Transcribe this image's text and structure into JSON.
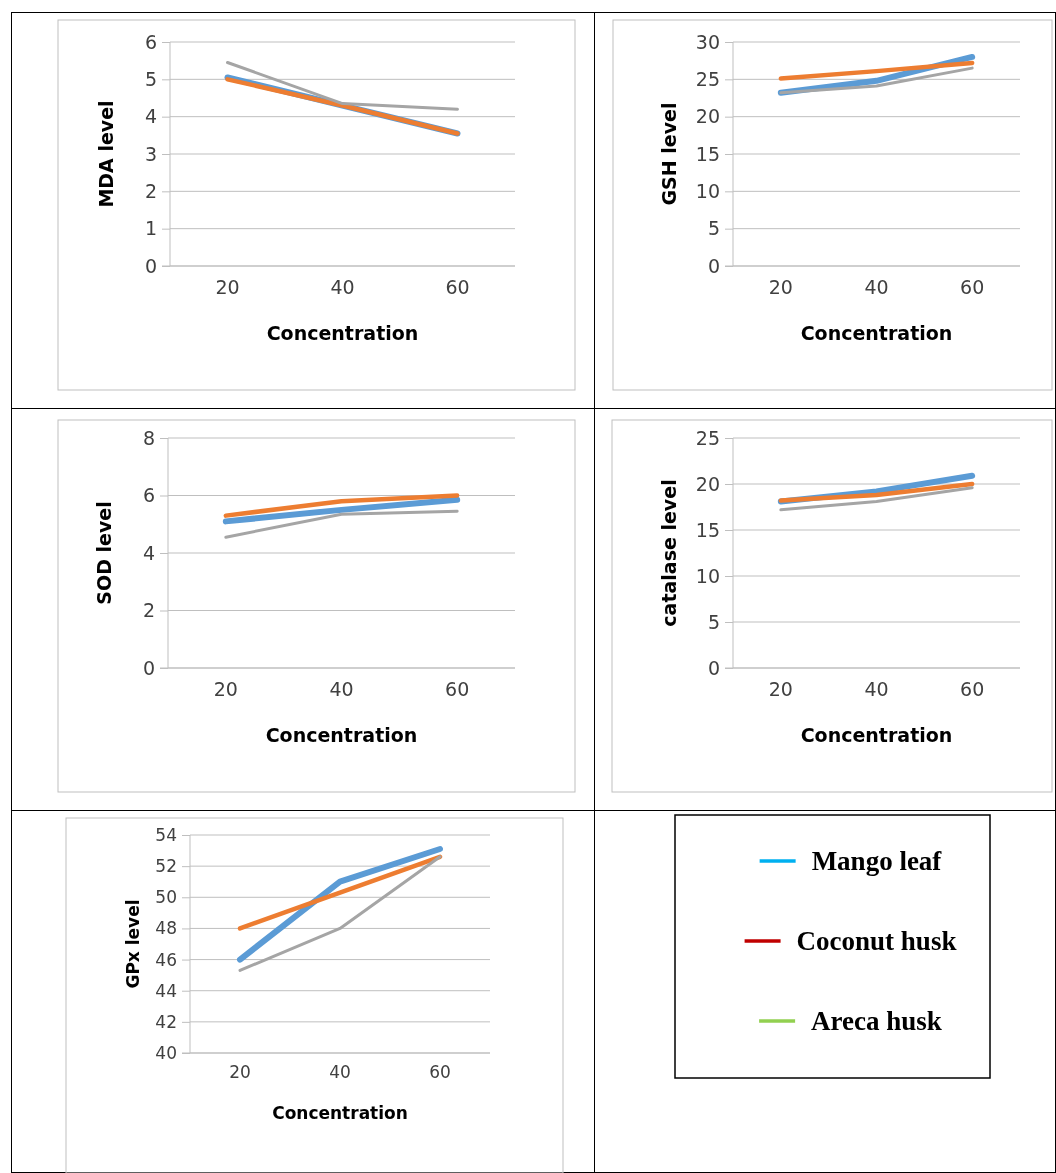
{
  "chart_data": [
    {
      "type": "line",
      "xlabel": "Concentration",
      "ylabel": "MDA level",
      "categories": [
        "20",
        "40",
        "60"
      ],
      "ylim": [
        0,
        6
      ],
      "yticks": [
        0,
        1,
        2,
        3,
        4,
        5,
        6
      ],
      "grid": "y",
      "legend": false,
      "series": [
        {
          "color": "#5b9bd5",
          "values": [
            5.05,
            4.3,
            3.55
          ]
        },
        {
          "color": "#ed7d31",
          "values": [
            5.0,
            4.3,
            3.55
          ]
        },
        {
          "color": "#a5a5a5",
          "values": [
            5.45,
            4.35,
            4.2
          ]
        }
      ]
    },
    {
      "type": "line",
      "xlabel": "Concentration",
      "ylabel": "GSH level",
      "categories": [
        "20",
        "40",
        "60"
      ],
      "ylim": [
        0,
        30
      ],
      "yticks": [
        0,
        5,
        10,
        15,
        20,
        25,
        30
      ],
      "grid": "y",
      "legend": false,
      "series": [
        {
          "color": "#5b9bd5",
          "values": [
            23.2,
            24.8,
            28.0
          ]
        },
        {
          "color": "#ed7d31",
          "values": [
            25.1,
            26.1,
            27.2
          ]
        },
        {
          "color": "#a5a5a5",
          "values": [
            23.2,
            24.1,
            26.5
          ]
        }
      ]
    },
    {
      "type": "line",
      "xlabel": "Concentration",
      "ylabel": "SOD level",
      "categories": [
        "20",
        "40",
        "60"
      ],
      "ylim": [
        0,
        8
      ],
      "yticks": [
        0,
        2,
        4,
        6,
        8
      ],
      "grid": "y",
      "legend": false,
      "series": [
        {
          "color": "#5b9bd5",
          "values": [
            5.1,
            5.5,
            5.85
          ]
        },
        {
          "color": "#ed7d31",
          "values": [
            5.3,
            5.8,
            6.0
          ]
        },
        {
          "color": "#a5a5a5",
          "values": [
            4.55,
            5.35,
            5.45
          ]
        }
      ]
    },
    {
      "type": "line",
      "xlabel": "Concentration",
      "ylabel": "catalase level",
      "categories": [
        "20",
        "40",
        "60"
      ],
      "ylim": [
        0,
        25
      ],
      "yticks": [
        0,
        5,
        10,
        15,
        20,
        25
      ],
      "grid": "y",
      "legend": false,
      "series": [
        {
          "color": "#5b9bd5",
          "values": [
            18.1,
            19.2,
            20.9
          ]
        },
        {
          "color": "#ed7d31",
          "values": [
            18.2,
            18.8,
            20.0
          ]
        },
        {
          "color": "#a5a5a5",
          "values": [
            17.2,
            18.1,
            19.6
          ]
        }
      ]
    },
    {
      "type": "line",
      "xlabel": "Concentration",
      "ylabel": "GPx level",
      "categories": [
        "20",
        "40",
        "60"
      ],
      "ylim": [
        40,
        54
      ],
      "yticks": [
        40,
        42,
        44,
        46,
        48,
        50,
        52,
        54
      ],
      "grid": "y",
      "legend": false,
      "series": [
        {
          "color": "#5b9bd5",
          "values": [
            46.0,
            51.0,
            53.1
          ]
        },
        {
          "color": "#ed7d31",
          "values": [
            48.0,
            50.3,
            52.6
          ]
        },
        {
          "color": "#a5a5a5",
          "values": [
            45.3,
            48.0,
            52.6
          ]
        }
      ]
    },
    {
      "type": "other",
      "legend": "right",
      "series": [
        {
          "name": "Mango leaf",
          "color": "#00b0f0"
        },
        {
          "name": "Coconut husk",
          "color": "#c00000"
        },
        {
          "name": "Areca husk",
          "color": "#92d050"
        }
      ]
    }
  ]
}
